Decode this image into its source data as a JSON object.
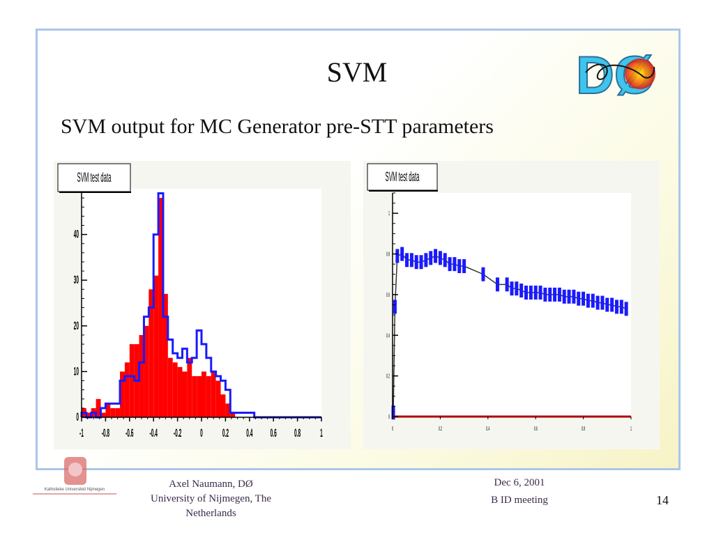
{
  "slide": {
    "title": "SVM",
    "subtitle": "SVM output for MC Generator pre-STT parameters",
    "logo_text": "DØ",
    "colors": {
      "frame": "#a9c7e8",
      "red_fill": "#ff0000",
      "blue_line": "#1a1aff",
      "text": "#111111"
    }
  },
  "footer": {
    "author_lines": [
      "Axel Naumann, DØ",
      "University of Nijmegen, The",
      "Netherlands"
    ],
    "date": "Dec 6, 2001",
    "event": "B ID meeting",
    "page_number": "14",
    "university_logo_text": "Katholieke Universiteit Nijmegen"
  },
  "chart_data": [
    {
      "type": "bar",
      "title": "SVM test data",
      "xlim": [
        -1,
        1
      ],
      "ylim": [
        0,
        50
      ],
      "x_ticks": [
        "-1",
        "-0.8",
        "-0.6",
        "-0.4",
        "-0.2",
        "0",
        "0.2",
        "0.4",
        "0.6",
        "0.8",
        "1"
      ],
      "y_ticks": [
        "0",
        "10",
        "20",
        "30",
        "40"
      ],
      "bin_width": 0.04,
      "series": [
        {
          "style": "filled",
          "color": "#ff0000",
          "values": [
            2,
            1,
            2,
            4,
            1,
            3,
            2,
            2,
            10,
            12,
            16,
            16,
            18,
            20,
            28,
            31,
            48,
            27,
            13,
            12,
            11,
            10,
            13,
            9,
            9,
            10,
            9,
            10,
            8,
            5,
            3,
            1,
            0,
            0,
            0,
            0,
            0,
            0,
            0,
            0,
            0,
            0,
            0,
            0,
            0,
            0,
            0,
            0,
            0,
            0
          ]
        },
        {
          "style": "outline",
          "color": "#1a1aff",
          "values": [
            1,
            0,
            1,
            0,
            2,
            3,
            3,
            3,
            8,
            9,
            9,
            8,
            12,
            22,
            24,
            40,
            49,
            22,
            17,
            14,
            13,
            15,
            12,
            13,
            19,
            16,
            13,
            10,
            9,
            8,
            6,
            1,
            1,
            1,
            1,
            1,
            0,
            0,
            0,
            0,
            0,
            0,
            0,
            0,
            0,
            0,
            0,
            0,
            0,
            0
          ]
        }
      ]
    },
    {
      "type": "line",
      "title": "SVM test data",
      "xlim": [
        0,
        1
      ],
      "ylim": [
        0,
        1.1
      ],
      "x_ticks": [
        "0",
        "0.2",
        "0.4",
        "0.6",
        "0.8",
        "1"
      ],
      "y_ticks": [
        "0",
        "0.2",
        "0.4",
        "0.6",
        "0.8",
        "1"
      ],
      "series": [
        {
          "style": "error-bars",
          "color": "#1a1aff",
          "x": [
            0.003,
            0.01,
            0.02,
            0.04,
            0.06,
            0.08,
            0.1,
            0.12,
            0.14,
            0.16,
            0.18,
            0.2,
            0.22,
            0.24,
            0.26,
            0.28,
            0.3,
            0.38,
            0.44,
            0.48,
            0.5,
            0.52,
            0.54,
            0.56,
            0.58,
            0.6,
            0.62,
            0.64,
            0.66,
            0.68,
            0.7,
            0.72,
            0.74,
            0.76,
            0.78,
            0.8,
            0.82,
            0.84,
            0.86,
            0.88,
            0.9,
            0.92,
            0.94,
            0.96,
            0.98
          ],
          "y": [
            0.02,
            0.54,
            0.79,
            0.8,
            0.77,
            0.77,
            0.76,
            0.76,
            0.77,
            0.78,
            0.79,
            0.78,
            0.77,
            0.75,
            0.75,
            0.74,
            0.74,
            0.7,
            0.65,
            0.65,
            0.63,
            0.63,
            0.62,
            0.61,
            0.61,
            0.61,
            0.61,
            0.6,
            0.6,
            0.6,
            0.6,
            0.59,
            0.59,
            0.59,
            0.58,
            0.58,
            0.57,
            0.57,
            0.56,
            0.56,
            0.55,
            0.55,
            0.54,
            0.54,
            0.53
          ]
        }
      ]
    }
  ]
}
